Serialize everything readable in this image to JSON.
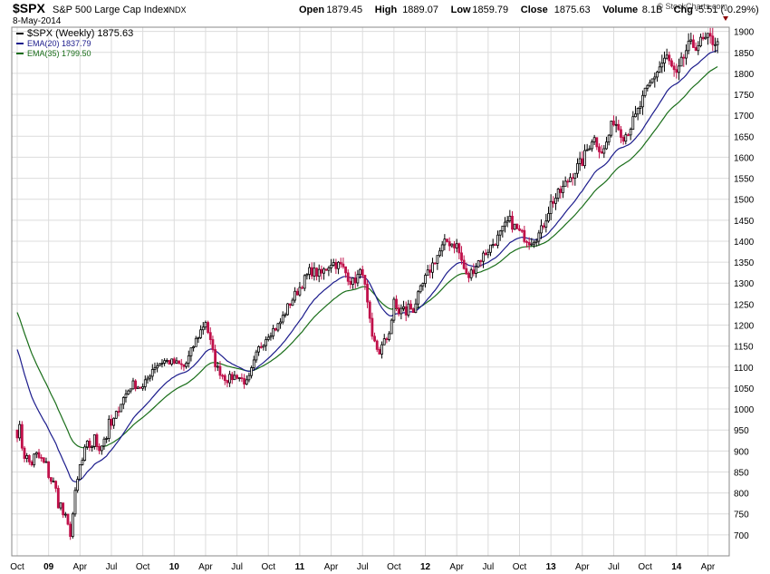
{
  "header": {
    "symbol": "$SPX",
    "name": "S&P 500 Large Cap Index",
    "exchange": "INDX",
    "date": "8-May-2014",
    "watermark": "© StockCharts.com",
    "quote": [
      {
        "label": "Open",
        "value": "1879.45"
      },
      {
        "label": "High",
        "value": "1889.07"
      },
      {
        "label": "Low",
        "value": "1859.79"
      },
      {
        "label": "Close",
        "value": "1875.63"
      },
      {
        "label": "Volume",
        "value": "8.1B"
      },
      {
        "label": "Chg",
        "value": "-5.51 (-0.29%)"
      }
    ]
  },
  "legend": [
    {
      "text": "$SPX (Weekly) 1875.63",
      "color": "#000000"
    },
    {
      "text": "EMA(20) 1837.79",
      "color": "#1c1c8c"
    },
    {
      "text": "EMA(35) 1799.50",
      "color": "#1a6e1a"
    }
  ],
  "colors": {
    "up": "#000000",
    "down": "#c0104a",
    "ema20": "#1c1c8c",
    "ema35": "#1a6e1a",
    "grid": "#dcdcdc",
    "accent": "#8b0000"
  },
  "chart_data": {
    "type": "candlestick",
    "frequency": "weekly",
    "ylim": [
      650,
      1910
    ],
    "y_ticks": [
      700,
      750,
      800,
      850,
      900,
      950,
      1000,
      1050,
      1100,
      1150,
      1200,
      1250,
      1300,
      1350,
      1400,
      1450,
      1500,
      1550,
      1600,
      1650,
      1700,
      1750,
      1800,
      1850,
      1900
    ],
    "x_labels": [
      "Oct",
      "09",
      "Apr",
      "Jul",
      "Oct",
      "10",
      "Apr",
      "Jul",
      "Oct",
      "11",
      "Apr",
      "Jul",
      "Oct",
      "12",
      "Apr",
      "Jul",
      "Oct",
      "13",
      "Apr",
      "Jul",
      "Oct",
      "14",
      "Apr"
    ],
    "bold_labels": [
      "09",
      "10",
      "11",
      "12",
      "13",
      "14"
    ],
    "x_months": [
      "2008-10",
      "2009-01",
      "2009-04",
      "2009-07",
      "2009-10",
      "2010-01",
      "2010-04",
      "2010-07",
      "2010-10",
      "2011-01",
      "2011-04",
      "2011-07",
      "2011-10",
      "2012-01",
      "2012-04",
      "2012-07",
      "2012-10",
      "2013-01",
      "2013-04",
      "2013-07",
      "2013-10",
      "2014-01",
      "2014-04"
    ],
    "x_start": "2008-10",
    "x_end": "2014-05",
    "price_path": [
      [
        "2008-10",
        960
      ],
      [
        "2008-11",
        870
      ],
      [
        "2008-12",
        885
      ],
      [
        "2009-01",
        850
      ],
      [
        "2009-02",
        780
      ],
      [
        "2009-03",
        700
      ],
      [
        "2009-04",
        860
      ],
      [
        "2009-05",
        920
      ],
      [
        "2009-06",
        920
      ],
      [
        "2009-07",
        960
      ],
      [
        "2009-08",
        1020
      ],
      [
        "2009-09",
        1060
      ],
      [
        "2009-10",
        1050
      ],
      [
        "2009-11",
        1100
      ],
      [
        "2009-12",
        1115
      ],
      [
        "2010-01",
        1110
      ],
      [
        "2010-02",
        1100
      ],
      [
        "2010-03",
        1160
      ],
      [
        "2010-04",
        1210
      ],
      [
        "2010-05",
        1100
      ],
      [
        "2010-06",
        1070
      ],
      [
        "2010-07",
        1080
      ],
      [
        "2010-08",
        1060
      ],
      [
        "2010-09",
        1140
      ],
      [
        "2010-10",
        1180
      ],
      [
        "2010-11",
        1200
      ],
      [
        "2010-12",
        1250
      ],
      [
        "2011-01",
        1290
      ],
      [
        "2011-02",
        1330
      ],
      [
        "2011-03",
        1320
      ],
      [
        "2011-04",
        1350
      ],
      [
        "2011-05",
        1340
      ],
      [
        "2011-06",
        1300
      ],
      [
        "2011-07",
        1330
      ],
      [
        "2011-08",
        1150
      ],
      [
        "2011-09",
        1140
      ],
      [
        "2011-10",
        1240
      ],
      [
        "2011-11",
        1230
      ],
      [
        "2011-12",
        1250
      ],
      [
        "2012-01",
        1310
      ],
      [
        "2012-02",
        1360
      ],
      [
        "2012-03",
        1400
      ],
      [
        "2012-04",
        1390
      ],
      [
        "2012-05",
        1310
      ],
      [
        "2012-06",
        1350
      ],
      [
        "2012-07",
        1380
      ],
      [
        "2012-08",
        1410
      ],
      [
        "2012-09",
        1450
      ],
      [
        "2012-10",
        1420
      ],
      [
        "2012-11",
        1400
      ],
      [
        "2012-12",
        1420
      ],
      [
        "2013-01",
        1490
      ],
      [
        "2013-02",
        1520
      ],
      [
        "2013-03",
        1560
      ],
      [
        "2013-04",
        1590
      ],
      [
        "2013-05",
        1650
      ],
      [
        "2013-06",
        1610
      ],
      [
        "2013-07",
        1690
      ],
      [
        "2013-08",
        1650
      ],
      [
        "2013-09",
        1690
      ],
      [
        "2013-10",
        1750
      ],
      [
        "2013-11",
        1800
      ],
      [
        "2013-12",
        1840
      ],
      [
        "2014-01",
        1790
      ],
      [
        "2014-02",
        1860
      ],
      [
        "2014-03",
        1870
      ],
      [
        "2014-04",
        1880
      ],
      [
        "2014-05",
        1876
      ]
    ]
  }
}
